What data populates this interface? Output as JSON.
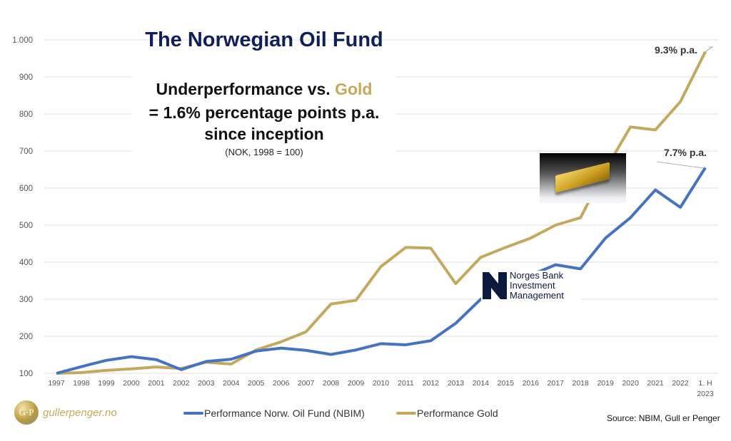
{
  "header": {
    "title": "The Norwegian Oil Fund",
    "subtitle_line1_prefix": "Underperformance vs. ",
    "subtitle_line1_highlight": "Gold",
    "subtitle_line2": "= 1.6% percentage points p.a.",
    "subtitle_line3": "since inception",
    "note": "(NOK, 1998 = 100)"
  },
  "logos": {
    "nbim": [
      "Norges Bank",
      "Investment",
      "Management"
    ],
    "brand_mark": "G·P",
    "brand_name": "gullerpenger.no"
  },
  "source": "Source: NBIM, Gull er Penger",
  "colors": {
    "nbim": "#4472c4",
    "gold": "#c4a95c",
    "title": "#0f1f5a"
  },
  "chart_data": {
    "type": "line",
    "categories": [
      "1997",
      "1998",
      "1999",
      "2000",
      "2001",
      "2002",
      "2003",
      "2004",
      "2005",
      "2006",
      "2007",
      "2008",
      "2009",
      "2010",
      "2011",
      "2012",
      "2013",
      "2014",
      "2015",
      "2016",
      "2017",
      "2018",
      "2019",
      "2020",
      "2021",
      "2022",
      "1. H 2023"
    ],
    "category_lines": [
      [
        "1997"
      ],
      [
        "1998"
      ],
      [
        "1999"
      ],
      [
        "2000"
      ],
      [
        "2001"
      ],
      [
        "2002"
      ],
      [
        "2003"
      ],
      [
        "2004"
      ],
      [
        "2005"
      ],
      [
        "2006"
      ],
      [
        "2007"
      ],
      [
        "2008"
      ],
      [
        "2009"
      ],
      [
        "2010"
      ],
      [
        "2011"
      ],
      [
        "2012"
      ],
      [
        "2013"
      ],
      [
        "2014"
      ],
      [
        "2015"
      ],
      [
        "2016"
      ],
      [
        "2017"
      ],
      [
        "2018"
      ],
      [
        "2019"
      ],
      [
        "2020"
      ],
      [
        "2021"
      ],
      [
        "2022"
      ],
      [
        "1. H",
        "2023"
      ]
    ],
    "yticks": [
      "100",
      "200",
      "300",
      "400",
      "500",
      "600",
      "700",
      "800",
      "900",
      "1.000"
    ],
    "ylim": [
      100,
      1000
    ],
    "grid": true,
    "legend_placement": "bottom",
    "series": [
      {
        "name": "Performance Norw. Oil Fund (NBIM)",
        "color": "#4472c4",
        "values": [
          100,
          118,
          135,
          145,
          137,
          110,
          132,
          138,
          160,
          168,
          162,
          151,
          163,
          180,
          177,
          188,
          235,
          300,
          345,
          365,
          393,
          382,
          465,
          520,
          595,
          548,
          655
        ],
        "end_label": "7.7% p.a."
      },
      {
        "name": "Performance Gold",
        "color": "#c4a95c",
        "values": [
          100,
          102,
          108,
          112,
          117,
          113,
          130,
          125,
          163,
          185,
          212,
          287,
          297,
          388,
          440,
          438,
          342,
          413,
          440,
          465,
          500,
          520,
          650,
          765,
          757,
          833,
          968
        ],
        "end_label": "9.3% p.a."
      }
    ]
  }
}
